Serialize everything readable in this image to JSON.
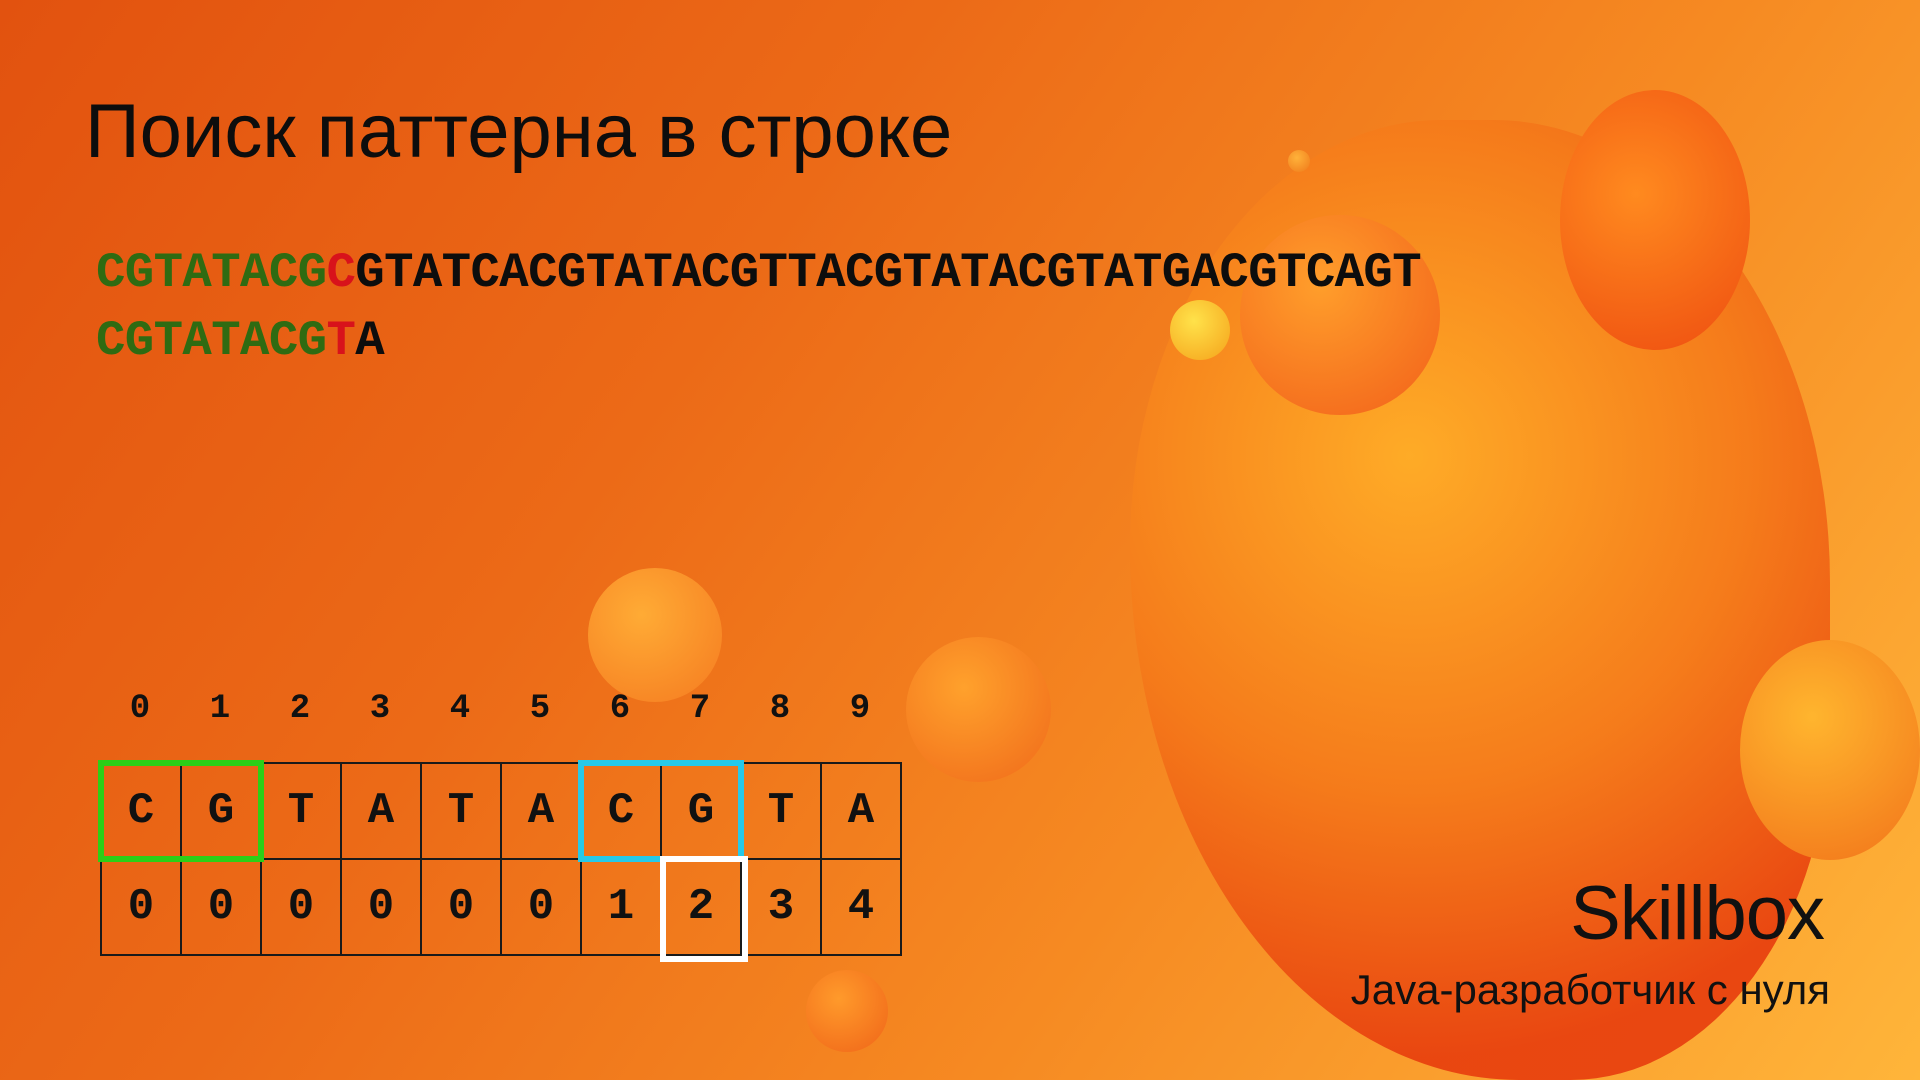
{
  "slide": {
    "title": "Поиск паттерна в строке"
  },
  "text_line": {
    "matched": "CGTATACG",
    "mismatch": "C",
    "rest": "GTATCACGTATACGTTACGTATACGTATGACGTCAGT"
  },
  "pattern_line": {
    "matched": "CGTATACG",
    "mismatch": "T",
    "rest": "A"
  },
  "prefix_table": {
    "indices": [
      "0",
      "1",
      "2",
      "3",
      "4",
      "5",
      "6",
      "7",
      "8",
      "9"
    ],
    "letters": [
      "C",
      "G",
      "T",
      "A",
      "T",
      "A",
      "C",
      "G",
      "T",
      "A"
    ],
    "values": [
      "0",
      "0",
      "0",
      "0",
      "0",
      "0",
      "1",
      "2",
      "3",
      "4"
    ],
    "highlight_colors": {
      "prefix": "#2ccf17",
      "suffix": "#27c9e8",
      "current": "#ffffff"
    }
  },
  "branding": {
    "logo": "Skillbox",
    "course": "Java-разработчик с нуля"
  },
  "colors": {
    "matched": "#2f6b12",
    "mismatch": "#d8121b",
    "text": "#0d0d0d"
  }
}
